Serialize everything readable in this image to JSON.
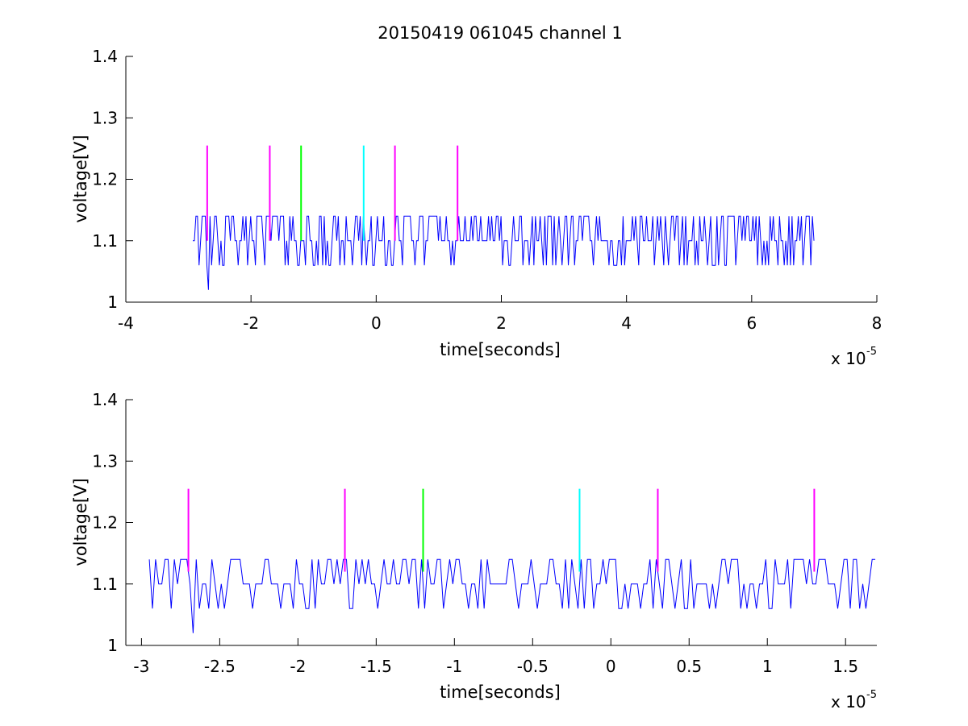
{
  "chart_data": [
    {
      "type": "line",
      "title": "20150419 061045 channel 1",
      "xlabel": "time[seconds]",
      "ylabel": "voltage[V]",
      "xlim": [
        -4,
        8
      ],
      "ylim": [
        1,
        1.4
      ],
      "x_multiplier_label": {
        "base": "x 10",
        "exponent": "-5"
      },
      "xticks": [
        "-4",
        "-2",
        "0",
        "2",
        "4",
        "6",
        "8"
      ],
      "xtick_values": [
        -4,
        -2,
        0,
        2,
        4,
        6,
        8
      ],
      "yticks": [
        "1",
        "1.1",
        "1.2",
        "1.3",
        "1.4"
      ],
      "ytick_values": [
        1,
        1.1,
        1.2,
        1.3,
        1.4
      ],
      "grid": false,
      "series": [
        {
          "values_description": "noisy digitized trace",
          "color": "#0000ff",
          "x_range": [
            -2.93,
            7.0
          ],
          "levels": [
            1.02,
            1.06,
            1.1,
            1.14
          ],
          "baseline": 1.1,
          "min_spike": {
            "x": -2.67,
            "y": 1.02
          }
        }
      ],
      "markers": [
        {
          "x": -2.7,
          "y0": 1.1,
          "y1": 1.255,
          "color": "#ff00ff"
        },
        {
          "x": -1.7,
          "y0": 1.1,
          "y1": 1.255,
          "color": "#ff00ff"
        },
        {
          "x": -1.2,
          "y0": 1.1,
          "y1": 1.255,
          "color": "#00ff00"
        },
        {
          "x": -0.2,
          "y0": 1.1,
          "y1": 1.255,
          "color": "#00ffff"
        },
        {
          "x": 0.3,
          "y0": 1.1,
          "y1": 1.255,
          "color": "#ff00ff"
        },
        {
          "x": 1.3,
          "y0": 1.1,
          "y1": 1.255,
          "color": "#ff00ff"
        }
      ]
    },
    {
      "type": "line",
      "title": "",
      "xlabel": "time[seconds]",
      "ylabel": "voltage[V]",
      "xlim": [
        -3.1,
        1.7
      ],
      "ylim": [
        1,
        1.4
      ],
      "x_multiplier_label": {
        "base": "x 10",
        "exponent": "-5"
      },
      "xticks": [
        "-3",
        "-2.5",
        "-2",
        "-1.5",
        "-1",
        "-0.5",
        "0",
        "0.5",
        "1",
        "1.5"
      ],
      "xtick_values": [
        -3,
        -2.5,
        -2,
        -1.5,
        -1,
        -0.5,
        0,
        0.5,
        1,
        1.5
      ],
      "yticks": [
        "1",
        "1.1",
        "1.2",
        "1.3",
        "1.4"
      ],
      "ytick_values": [
        1,
        1.1,
        1.2,
        1.3,
        1.4
      ],
      "grid": false,
      "series": [
        {
          "values_description": "zoomed view of the same noisy digitized trace",
          "color": "#0000ff",
          "x_range": [
            -2.95,
            1.7
          ],
          "levels": [
            1.02,
            1.06,
            1.1,
            1.14
          ],
          "baseline": 1.1,
          "min_spike": {
            "x": -2.67,
            "y": 1.02
          }
        }
      ],
      "markers": [
        {
          "x": -2.7,
          "y0": 1.12,
          "y1": 1.255,
          "color": "#ff00ff"
        },
        {
          "x": -1.7,
          "y0": 1.12,
          "y1": 1.255,
          "color": "#ff00ff"
        },
        {
          "x": -1.2,
          "y0": 1.12,
          "y1": 1.255,
          "color": "#00ff00"
        },
        {
          "x": -0.2,
          "y0": 1.12,
          "y1": 1.255,
          "color": "#00ffff"
        },
        {
          "x": 0.3,
          "y0": 1.12,
          "y1": 1.255,
          "color": "#ff00ff"
        },
        {
          "x": 1.3,
          "y0": 1.12,
          "y1": 1.255,
          "color": "#ff00ff"
        }
      ]
    }
  ]
}
